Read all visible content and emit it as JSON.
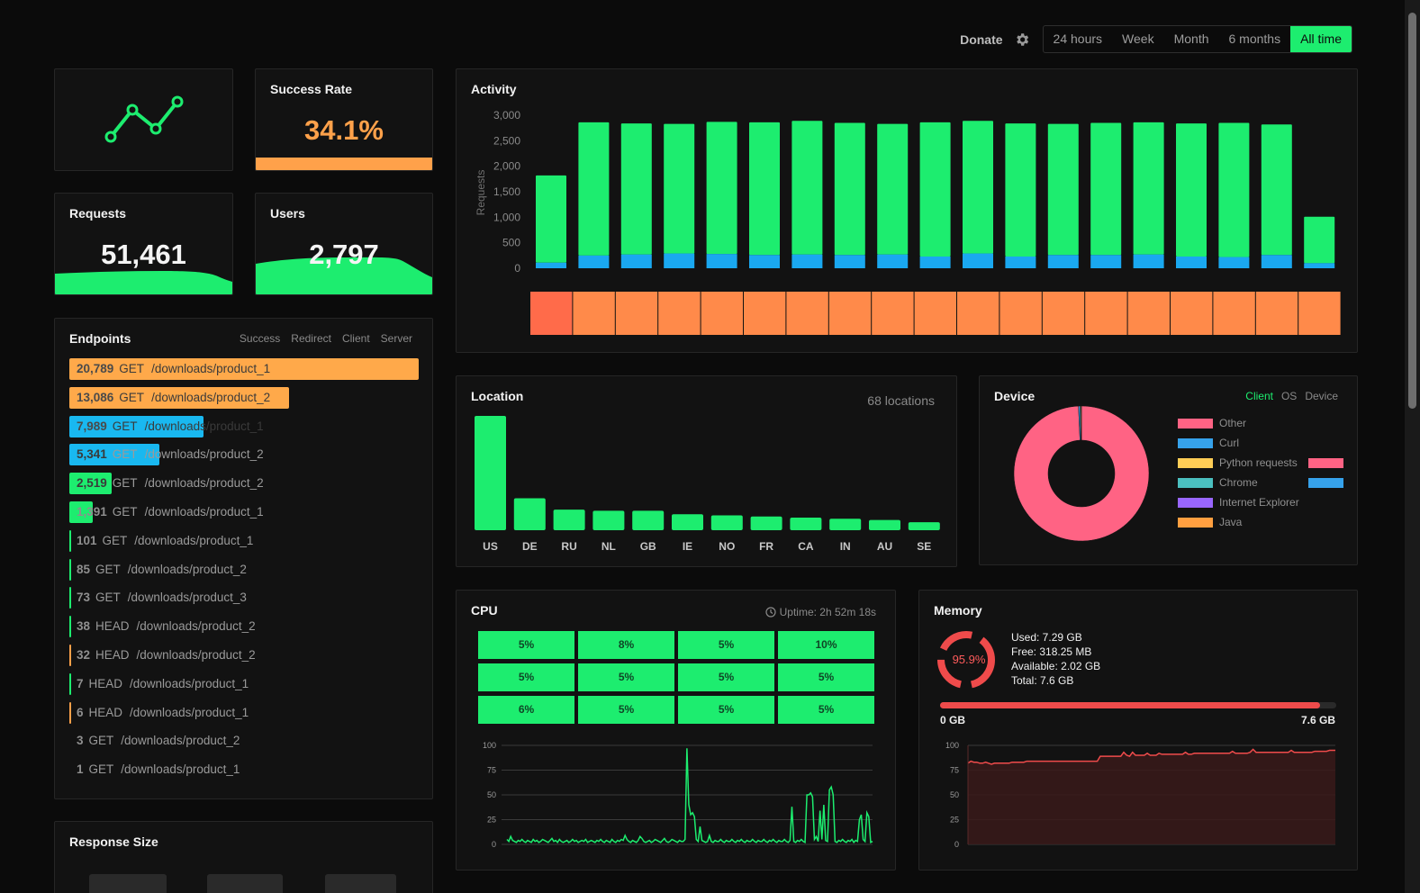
{
  "topbar": {
    "donate": "Donate",
    "periods": [
      "24 hours",
      "Week",
      "Month",
      "6 months",
      "All time"
    ],
    "active_period": "All time",
    "accent": "#1ded6f"
  },
  "success": {
    "title": "Success Rate",
    "value": "34.1%",
    "bar_fraction": 1.0,
    "color": "#ffa14a"
  },
  "requests": {
    "title": "Requests",
    "value": "51,461"
  },
  "users": {
    "title": "Users",
    "value": "2,797"
  },
  "endpoints": {
    "title": "Endpoints",
    "filters": [
      "Success",
      "Redirect",
      "Client",
      "Server"
    ],
    "rows": [
      {
        "count": "20,789",
        "method": "GET",
        "path": "/downloads/product_1",
        "fill": 1.0,
        "color": "#ffa94a"
      },
      {
        "count": "13,086",
        "method": "GET",
        "path": "/downloads/product_2",
        "fill": 0.63,
        "color": "#ffa94a"
      },
      {
        "count": "7,989",
        "method": "GET",
        "path": "/downloads/product_1",
        "fill": 0.385,
        "color": "#19b8f0"
      },
      {
        "count": "5,341",
        "method": "GET",
        "path": "/downloads/product_2",
        "fill": 0.257,
        "color": "#19b8f0"
      },
      {
        "count": "2,519",
        "method": "GET",
        "path": "/downloads/product_2",
        "fill": 0.121,
        "color": "#1ded6f"
      },
      {
        "count": "1,391",
        "method": "GET",
        "path": "/downloads/product_1",
        "fill": 0.067,
        "color": "#1ded6f"
      },
      {
        "count": "101",
        "method": "GET",
        "path": "/downloads/product_1",
        "fill": 0.005,
        "color": "#1ded6f"
      },
      {
        "count": "85",
        "method": "GET",
        "path": "/downloads/product_2",
        "fill": 0.004,
        "color": "#1ded6f"
      },
      {
        "count": "73",
        "method": "GET",
        "path": "/downloads/product_3",
        "fill": 0.004,
        "color": "#1ded6f"
      },
      {
        "count": "38",
        "method": "HEAD",
        "path": "/downloads/product_2",
        "fill": 0.002,
        "color": "#1ded6f"
      },
      {
        "count": "32",
        "method": "HEAD",
        "path": "/downloads/product_2",
        "fill": 0.002,
        "color": "#ffa14a"
      },
      {
        "count": "7",
        "method": "HEAD",
        "path": "/downloads/product_1",
        "fill": 0.0,
        "color": "#1ded6f"
      },
      {
        "count": "6",
        "method": "HEAD",
        "path": "/downloads/product_1",
        "fill": 0.0,
        "color": "#ffa14a"
      },
      {
        "count": "3",
        "method": "GET",
        "path": "/downloads/product_2",
        "fill": 0.0,
        "color": ""
      },
      {
        "count": "1",
        "method": "GET",
        "path": "/downloads/product_1",
        "fill": 0.0,
        "color": ""
      }
    ]
  },
  "response_size": {
    "title": "Response Size"
  },
  "activity": {
    "title": "Activity",
    "ylabel": "Requests",
    "yticks": [
      "3,000",
      "2,500",
      "2,000",
      "1,500",
      "1,000",
      "500",
      "0"
    ],
    "ymax": 3000,
    "success_color": "#1ded6f",
    "other_color": "#1aa8f0",
    "totals": [
      1820,
      2860,
      2840,
      2830,
      2870,
      2860,
      2890,
      2850,
      2830,
      2860,
      2890,
      2840,
      2830,
      2850,
      2860,
      2840,
      2850,
      2820,
      1010
    ],
    "other": [
      110,
      250,
      270,
      290,
      280,
      260,
      270,
      260,
      270,
      230,
      290,
      230,
      260,
      260,
      270,
      230,
      220,
      260,
      100
    ],
    "heat_colors": [
      "#ff6b4a",
      "#ff8a4a",
      "#ff8a4a",
      "#ff8a4a",
      "#ff8a4a",
      "#ff8a4a",
      "#ff8a4a",
      "#ff8a4a",
      "#ff8a4a",
      "#ff8a4a",
      "#ff8a4a",
      "#ff8a4a",
      "#ff8a4a",
      "#ff8a4a",
      "#ff8a4a",
      "#ff8a4a",
      "#ff8a4a",
      "#ff8a4a",
      "#ff8a4a"
    ]
  },
  "location": {
    "title": "Location",
    "count_label": "68 locations",
    "countries": [
      "US",
      "DE",
      "RU",
      "NL",
      "GB",
      "IE",
      "NO",
      "FR",
      "CA",
      "IN",
      "AU",
      "SE"
    ],
    "values": [
      100,
      28,
      18,
      17,
      17,
      14,
      13,
      12,
      11,
      10,
      9,
      7
    ]
  },
  "device": {
    "title": "Device",
    "tabs": [
      "Client",
      "OS",
      "Device"
    ],
    "active_tab": "Client",
    "legend": [
      {
        "label": "Other",
        "color": "#ff6384"
      },
      {
        "label": "Curl",
        "color": "#36a2eb"
      },
      {
        "label": "Python requests",
        "color": "#ffcd56"
      },
      {
        "label": "Chrome",
        "color": "#4bc0c0"
      },
      {
        "label": "Internet Explorer",
        "color": "#9966ff"
      },
      {
        "label": "Java",
        "color": "#ff9f40"
      }
    ],
    "donut_fractions": [
      0.993,
      0.004,
      0.002,
      0.001
    ]
  },
  "cpu": {
    "title": "CPU",
    "uptime": "Uptime: 2h 52m 18s",
    "cores": [
      "5%",
      "8%",
      "5%",
      "10%",
      "5%",
      "5%",
      "5%",
      "5%",
      "6%",
      "5%",
      "5%",
      "5%"
    ],
    "yticks": [
      "100",
      "75",
      "50",
      "25",
      "0"
    ],
    "series": [
      5,
      3,
      8,
      4,
      3,
      2,
      4,
      3,
      5,
      3,
      2,
      4,
      3,
      2,
      5,
      3,
      4,
      2,
      3,
      5,
      4,
      3,
      2,
      4,
      6,
      3,
      4,
      2,
      5,
      3,
      2,
      3,
      4,
      2,
      3,
      5,
      3,
      4,
      2,
      3,
      4,
      3,
      5,
      2,
      3,
      4,
      3,
      2,
      4,
      3,
      5,
      3,
      2,
      4,
      3,
      2,
      5,
      3,
      2,
      4,
      3,
      5,
      4,
      9,
      5,
      3,
      2,
      4,
      3,
      2,
      4,
      8,
      6,
      3,
      2,
      3,
      4,
      2,
      3,
      5,
      4,
      3,
      2,
      4,
      6,
      3,
      2,
      3,
      5,
      4,
      3,
      2,
      4,
      3,
      3,
      5,
      97,
      40,
      30,
      32,
      28,
      5,
      3,
      18,
      4,
      3,
      2,
      3,
      9,
      3,
      2,
      4,
      3,
      3,
      5,
      3,
      2,
      4,
      3,
      3,
      5,
      3,
      2,
      4,
      3,
      5,
      3,
      2,
      4,
      3,
      3,
      5,
      3,
      2,
      4,
      3,
      3,
      5,
      3,
      2,
      4,
      3,
      5,
      3,
      2,
      4,
      3,
      3,
      5,
      3,
      2,
      4,
      38,
      3,
      2,
      4,
      3,
      5,
      3,
      2,
      50,
      50,
      52,
      48,
      5,
      8,
      3,
      34,
      5,
      40,
      4,
      3,
      55,
      58,
      50,
      3,
      2,
      4,
      3,
      5,
      3,
      2,
      4,
      3,
      5,
      2,
      4,
      3,
      25,
      30,
      5,
      3,
      32,
      28,
      2,
      3
    ]
  },
  "memory": {
    "title": "Memory",
    "percent": "95.9%",
    "used": "Used: 7.29 GB",
    "free": "Free: 318.25 MB",
    "available": "Available: 2.02 GB",
    "total": "Total: 7.6 GB",
    "min_label": "0 GB",
    "max_label": "7.6 GB",
    "used_fraction": 0.959,
    "yticks": [
      "100",
      "75",
      "50",
      "25",
      "0"
    ],
    "series": [
      82,
      84,
      83,
      83,
      82,
      82,
      83,
      82,
      81,
      82,
      82,
      82,
      82,
      82,
      82,
      83,
      83,
      83,
      83,
      83,
      84,
      84,
      84,
      84,
      84,
      84,
      84,
      84,
      84,
      84,
      84,
      84,
      84,
      84,
      84,
      84,
      84,
      84,
      84,
      84,
      84,
      84,
      84,
      84,
      84,
      89,
      89,
      89,
      89,
      89,
      89,
      89,
      89,
      93,
      90,
      89,
      93,
      90,
      90,
      90,
      90,
      92,
      90,
      90,
      90,
      92,
      91,
      91,
      91,
      91,
      91,
      91,
      91,
      91,
      93,
      91,
      91,
      92,
      92,
      92,
      92,
      92,
      92,
      92,
      92,
      92,
      92,
      92,
      92,
      92,
      94,
      92,
      92,
      92,
      92,
      92,
      93,
      96,
      93,
      93,
      93,
      93,
      93,
      93,
      93,
      93,
      93,
      93,
      93,
      93,
      95,
      93,
      93,
      93,
      93,
      93,
      93,
      93,
      94,
      94,
      94,
      94,
      94,
      95,
      95,
      95
    ]
  }
}
